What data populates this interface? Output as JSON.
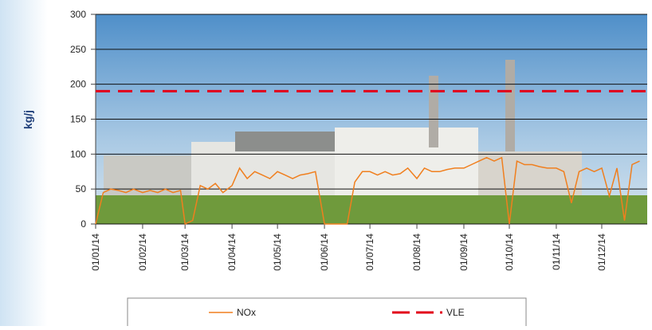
{
  "chart_data": {
    "type": "line",
    "y_label": "kg/j",
    "x": [
      "01/01/14",
      "06/01/14",
      "11/01/14",
      "16/01/14",
      "21/01/14",
      "26/01/14",
      "01/02/14",
      "06/02/14",
      "11/02/14",
      "16/02/14",
      "21/02/14",
      "26/02/14",
      "01/03/14",
      "06/03/14",
      "11/03/14",
      "16/03/14",
      "21/03/14",
      "26/03/14",
      "01/04/14",
      "06/04/14",
      "11/04/14",
      "16/04/14",
      "21/04/14",
      "26/04/14",
      "01/05/14",
      "06/05/14",
      "11/05/14",
      "16/05/14",
      "21/05/14",
      "26/05/14",
      "01/06/14",
      "06/06/14",
      "11/06/14",
      "16/06/14",
      "21/06/14",
      "26/06/14",
      "01/07/14",
      "06/07/14",
      "11/07/14",
      "16/07/14",
      "21/07/14",
      "26/07/14",
      "01/08/14",
      "06/08/14",
      "11/08/14",
      "16/08/14",
      "21/08/14",
      "26/08/14",
      "01/09/14",
      "06/09/14",
      "11/09/14",
      "16/09/14",
      "21/09/14",
      "26/09/14",
      "01/10/14",
      "06/10/14",
      "11/10/14",
      "16/10/14",
      "21/10/14",
      "26/10/14",
      "01/11/14",
      "06/11/14",
      "11/11/14",
      "16/11/14",
      "21/11/14",
      "26/11/14",
      "01/12/14",
      "06/12/14",
      "11/12/14",
      "16/12/14",
      "21/12/14",
      "26/12/14"
    ],
    "series": [
      {
        "name": "NOx",
        "color": "#f07f1e",
        "values": [
          0,
          45,
          50,
          48,
          45,
          50,
          45,
          48,
          45,
          50,
          45,
          48,
          0,
          5,
          55,
          50,
          58,
          45,
          55,
          80,
          65,
          75,
          70,
          65,
          75,
          70,
          65,
          70,
          72,
          75,
          0,
          0,
          0,
          0,
          60,
          75,
          75,
          70,
          75,
          70,
          72,
          80,
          65,
          80,
          75,
          75,
          78,
          80,
          80,
          85,
          90,
          95,
          90,
          95,
          0,
          90,
          85,
          85,
          82,
          80,
          80,
          75,
          30,
          75,
          80,
          75,
          80,
          40,
          80,
          5,
          85,
          90
        ]
      }
    ],
    "reference_lines": [
      {
        "name": "VLE",
        "color": "#e2001a",
        "value": 190
      }
    ],
    "xlim": [
      "01/01/14",
      "31/12/14"
    ],
    "xticks": [
      "01/01/14",
      "01/02/14",
      "01/03/14",
      "01/04/14",
      "01/05/14",
      "01/06/14",
      "01/07/14",
      "01/08/14",
      "01/09/14",
      "01/10/14",
      "01/11/14",
      "01/12/14"
    ],
    "ylim": [
      0,
      300
    ],
    "yticks": [
      0,
      50,
      100,
      150,
      200,
      250,
      300
    ],
    "grid": true
  }
}
